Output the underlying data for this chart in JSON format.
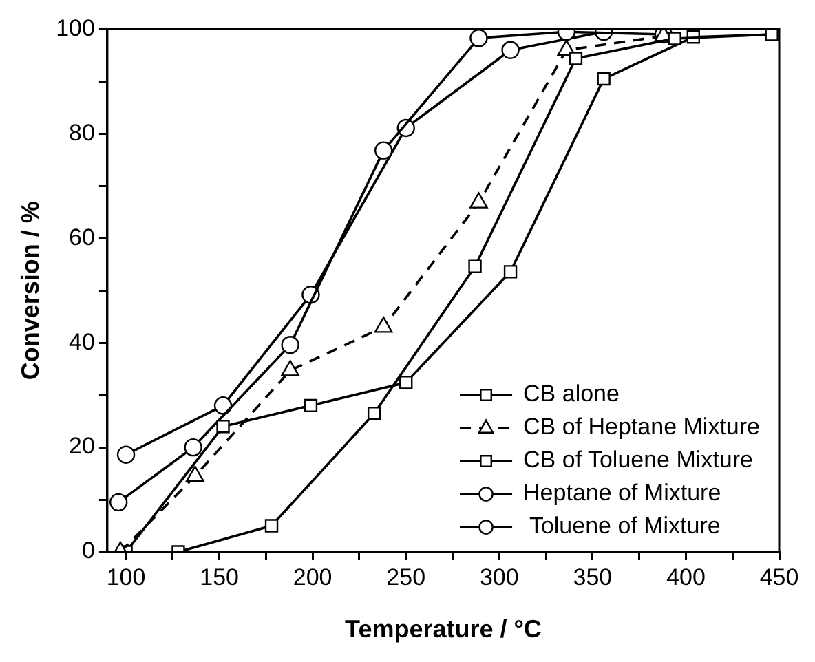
{
  "chart_data": {
    "type": "line",
    "xlabel": "Temperature / °C",
    "ylabel": "Conversion / %",
    "xlim": [
      90,
      450
    ],
    "xticks": [
      100,
      150,
      200,
      250,
      300,
      350,
      400,
      450
    ],
    "ylim": [
      0,
      100
    ],
    "yticks": [
      0,
      20,
      40,
      60,
      80,
      100
    ],
    "grid": false,
    "legend": "bottom right",
    "series": [
      {
        "name": "CB alone",
        "color": "#000000",
        "marker": "square",
        "line_style": "solid",
        "x": [
          128,
          178,
          233,
          287,
          341,
          394,
          446
        ],
        "values": [
          0,
          5,
          26.5,
          54.6,
          94.4,
          98.2,
          99
        ]
      },
      {
        "name": "CB of Heptane Mixture",
        "color": "#000000",
        "marker": "triangle",
        "line_style": "dashed",
        "x": [
          97,
          137,
          188,
          238,
          289,
          336,
          388
        ],
        "values": [
          0,
          14.5,
          34.7,
          43,
          66.8,
          96,
          98.7
        ]
      },
      {
        "name": "CB of Toluene Mixture",
        "color": "#000000",
        "marker": "square",
        "line_style": "solid",
        "x": [
          100,
          152,
          199,
          250,
          306,
          356,
          404,
          448
        ],
        "values": [
          0,
          24,
          28,
          32.4,
          53.6,
          90.5,
          98.5,
          99
        ]
      },
      {
        "name": "Heptane of Mixture",
        "color": "#000000",
        "marker": "circle",
        "line_style": "solid",
        "x": [
          96,
          136,
          188,
          238,
          289,
          336,
          388
        ],
        "values": [
          9.5,
          20,
          39.6,
          76.8,
          98.3,
          99.5,
          99
        ]
      },
      {
        "name": " Toluene of Mixture",
        "color": "#000000",
        "marker": "circle",
        "line_style": "solid",
        "x": [
          100,
          152,
          199,
          250,
          306,
          356
        ],
        "values": [
          18.6,
          28,
          49.2,
          81.1,
          96,
          99.5
        ]
      }
    ]
  }
}
